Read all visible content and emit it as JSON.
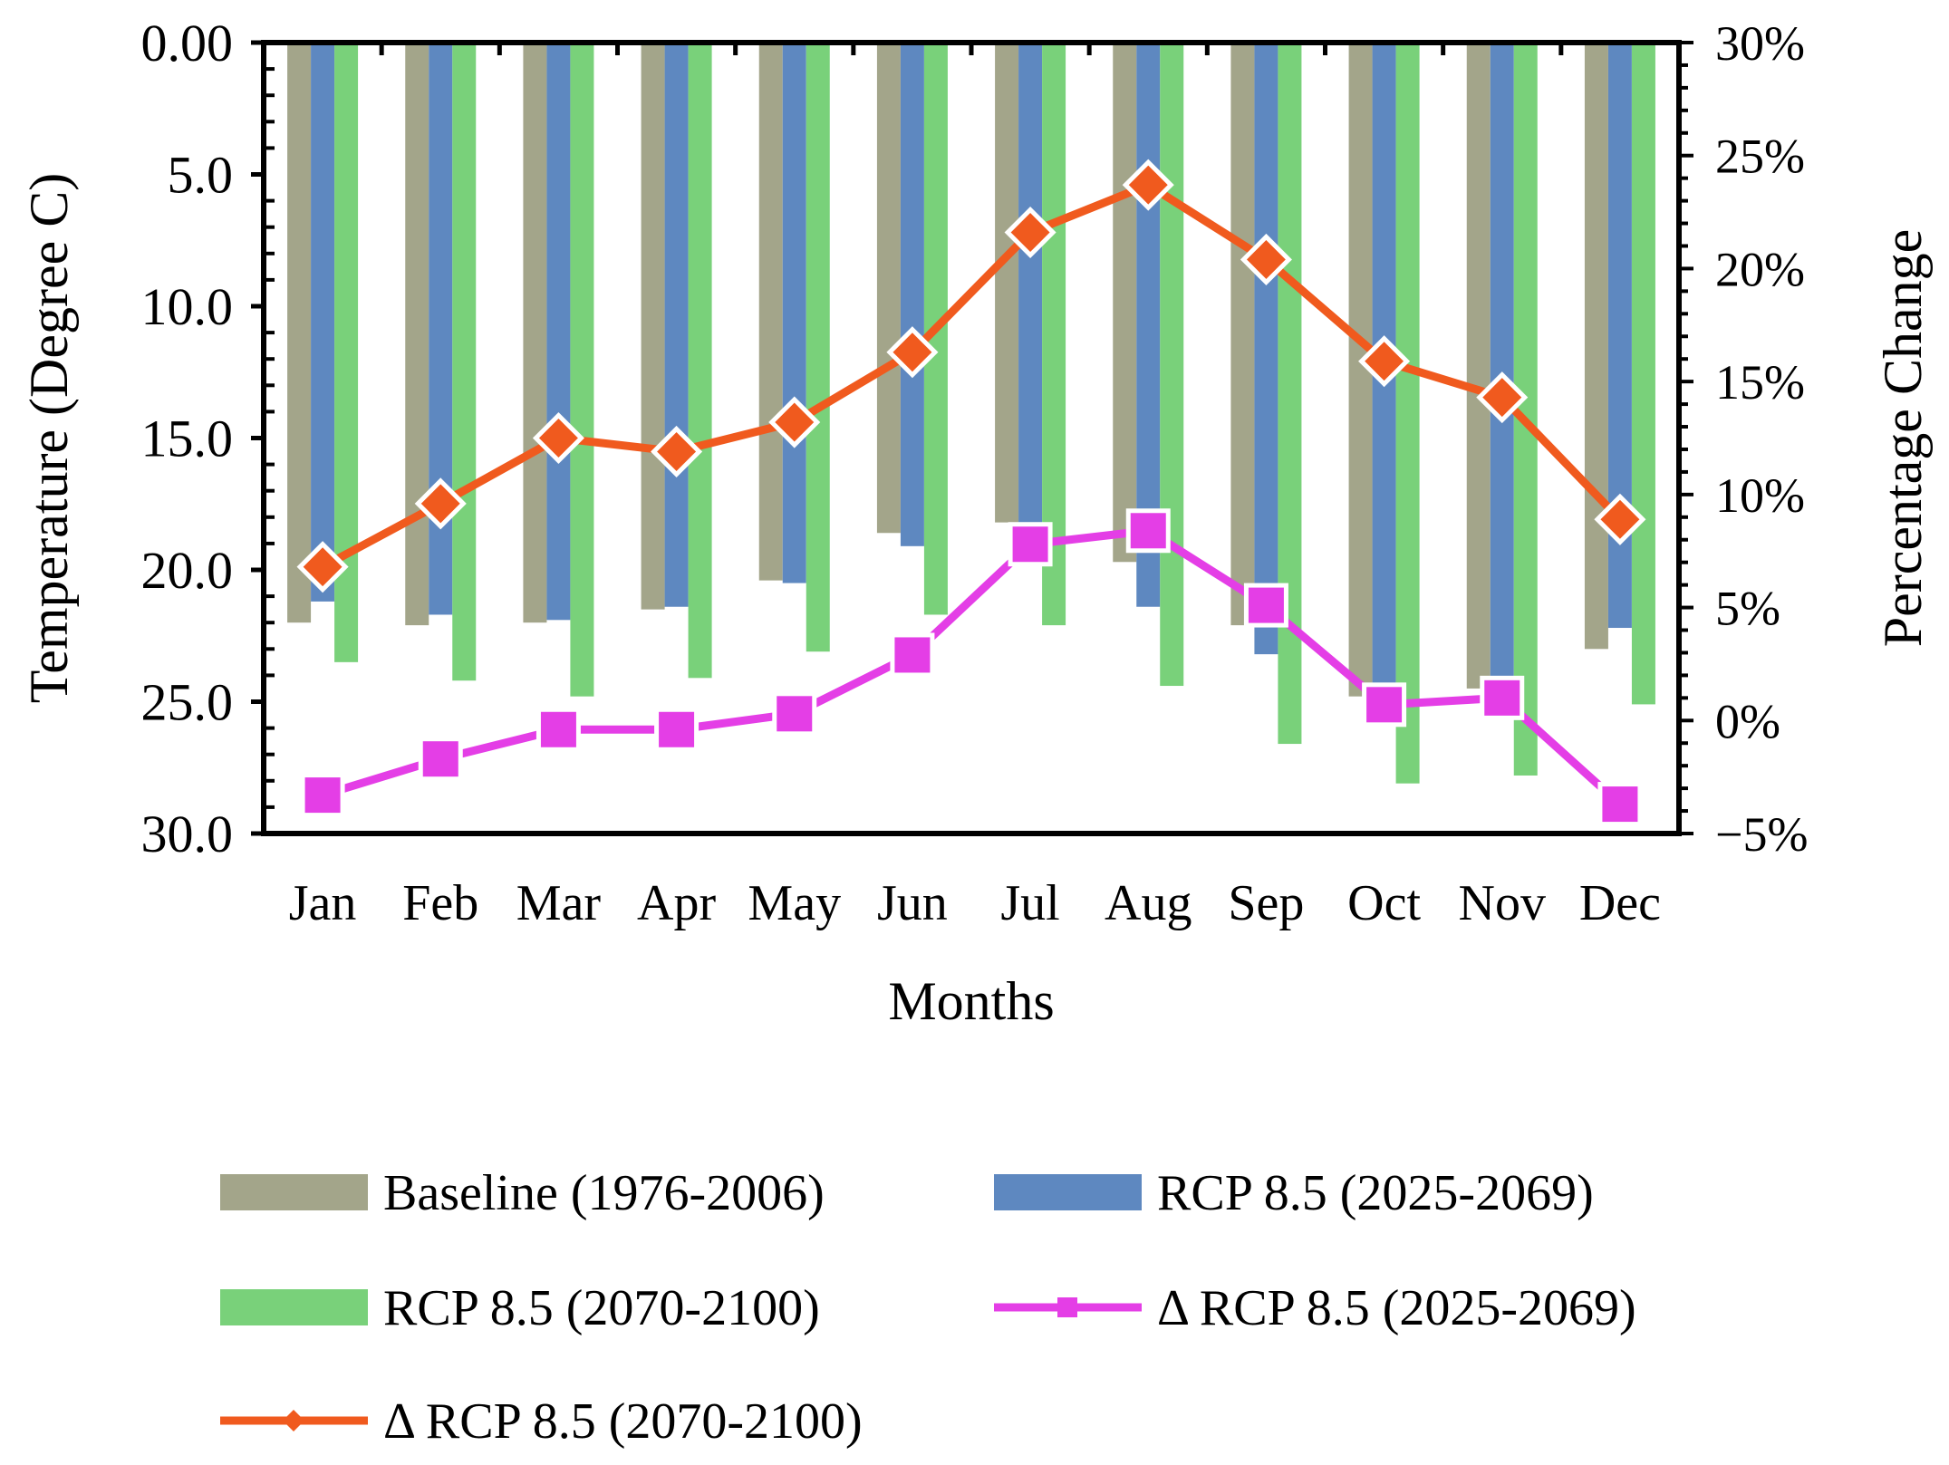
{
  "chart_data": {
    "type": "bar",
    "categories": [
      "Jan",
      "Feb",
      "Mar",
      "Apr",
      "May",
      "Jun",
      "Jul",
      "Aug",
      "Sep",
      "Oct",
      "Nov",
      "Dec"
    ],
    "xlabel": "Months",
    "ylabel": "Temperature (Degree C)",
    "y2label": "Percentage Change",
    "ylim": [
      30,
      0
    ],
    "y_inverted": true,
    "y_ticks": [
      "0.00",
      "5.0",
      "10.0",
      "15.0",
      "20.0",
      "25.0",
      "30.0"
    ],
    "y2lim": [
      -5,
      30
    ],
    "y2_ticks": [
      "30%",
      "25%",
      "20%",
      "15%",
      "10%",
      "5%",
      "0%",
      "−5%"
    ],
    "legend_position": "bottom",
    "series": [
      {
        "name": "Baseline (1976-2006)",
        "kind": "bar",
        "axis": "left",
        "color": "#A3A58A",
        "values": [
          22.0,
          22.1,
          22.0,
          21.5,
          20.4,
          18.6,
          18.2,
          19.7,
          22.1,
          24.8,
          24.5,
          23.0
        ]
      },
      {
        "name": "RCP 8.5 (2025-2069)",
        "kind": "bar",
        "axis": "left",
        "color": "#5E88C0",
        "values": [
          21.2,
          21.7,
          21.9,
          21.4,
          20.5,
          19.1,
          19.0,
          21.4,
          23.2,
          25.0,
          24.8,
          22.2
        ]
      },
      {
        "name": "RCP 8.5 (2070-2100)",
        "kind": "bar",
        "axis": "left",
        "color": "#79D17A",
        "values": [
          23.5,
          24.2,
          24.8,
          24.1,
          23.1,
          21.7,
          22.1,
          24.4,
          26.6,
          28.1,
          27.8,
          25.1
        ]
      },
      {
        "name": "Δ RCP 8.5 (2025-2069)",
        "kind": "line",
        "marker": "square",
        "axis": "right",
        "color": "#E43EE6",
        "values": [
          -3.3,
          -1.7,
          -0.4,
          -0.4,
          0.3,
          2.9,
          7.8,
          8.4,
          5.1,
          0.7,
          1.0,
          -3.7
        ]
      },
      {
        "name": "Δ  RCP 8.5 (2070-2100)",
        "kind": "line",
        "marker": "diamond",
        "axis": "right",
        "color": "#F05A1E",
        "values": [
          6.8,
          9.6,
          12.5,
          11.9,
          13.2,
          16.3,
          21.6,
          23.7,
          20.4,
          15.9,
          14.3,
          8.9
        ]
      }
    ]
  }
}
